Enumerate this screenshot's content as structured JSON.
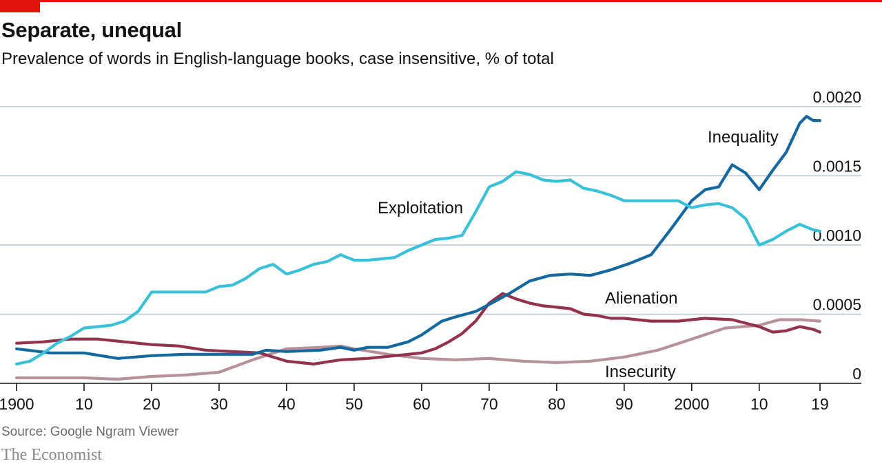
{
  "header": {
    "title": "Separate, unequal",
    "subtitle": "Prevalence of words in English-language books, case insensitive, % of total"
  },
  "footer": {
    "source": "Source: Google Ngram Viewer",
    "brand": "The Economist"
  },
  "chart_data": {
    "type": "line",
    "xlim": [
      1900,
      2019
    ],
    "ylim": [
      0,
      0.002
    ],
    "yticks": [
      0,
      0.0005,
      0.001,
      0.0015,
      0.002
    ],
    "ytick_labels": [
      "0",
      "0.0005",
      "0.0010",
      "0.0015",
      "0.0020"
    ],
    "xticks": [
      1900,
      1910,
      1920,
      1930,
      1940,
      1950,
      1960,
      1970,
      1980,
      1990,
      2000,
      2010,
      2019
    ],
    "xtick_labels": [
      "1900",
      "10",
      "20",
      "30",
      "40",
      "50",
      "60",
      "70",
      "80",
      "90",
      "2000",
      "10",
      "19"
    ],
    "grid": "horizontal",
    "series": [
      {
        "name": "Exploitation",
        "color": "#38c1d8",
        "x": [
          1900,
          1902,
          1904,
          1906,
          1908,
          1910,
          1912,
          1914,
          1916,
          1918,
          1920,
          1922,
          1924,
          1926,
          1928,
          1930,
          1932,
          1934,
          1936,
          1938,
          1940,
          1942,
          1944,
          1946,
          1948,
          1950,
          1952,
          1954,
          1956,
          1958,
          1960,
          1962,
          1964,
          1966,
          1968,
          1970,
          1972,
          1974,
          1976,
          1978,
          1980,
          1982,
          1984,
          1986,
          1988,
          1990,
          1992,
          1994,
          1996,
          1998,
          2000,
          2002,
          2004,
          2006,
          2008,
          2010,
          2012,
          2014,
          2016,
          2018,
          2019
        ],
        "values": [
          0.00014,
          0.00016,
          0.00022,
          0.00029,
          0.00034,
          0.0004,
          0.00041,
          0.00042,
          0.00045,
          0.00052,
          0.00066,
          0.00066,
          0.00066,
          0.00066,
          0.00066,
          0.0007,
          0.00071,
          0.00076,
          0.00083,
          0.00086,
          0.00079,
          0.00082,
          0.00086,
          0.00088,
          0.00093,
          0.00089,
          0.00089,
          0.0009,
          0.00091,
          0.00096,
          0.001,
          0.00104,
          0.00105,
          0.00107,
          0.00124,
          0.00142,
          0.00146,
          0.00153,
          0.00151,
          0.00147,
          0.00146,
          0.00147,
          0.00141,
          0.00139,
          0.00136,
          0.00132,
          0.00132,
          0.00132,
          0.00132,
          0.00132,
          0.00127,
          0.00129,
          0.0013,
          0.00127,
          0.00119,
          0.001,
          0.00104,
          0.0011,
          0.00115,
          0.00111,
          0.0011
        ]
      },
      {
        "name": "Inequality",
        "color": "#1468a0",
        "x": [
          1900,
          1905,
          1910,
          1915,
          1920,
          1925,
          1930,
          1935,
          1937,
          1940,
          1945,
          1948,
          1950,
          1952,
          1955,
          1958,
          1960,
          1963,
          1965,
          1968,
          1970,
          1973,
          1976,
          1979,
          1982,
          1985,
          1988,
          1991,
          1994,
          1997,
          2000,
          2002,
          2004,
          2006,
          2008,
          2010,
          2012,
          2014,
          2016,
          2017,
          2018,
          2019
        ],
        "values": [
          0.00025,
          0.00022,
          0.00022,
          0.00018,
          0.0002,
          0.00021,
          0.00021,
          0.00021,
          0.00024,
          0.00023,
          0.00024,
          0.00026,
          0.00024,
          0.00026,
          0.00026,
          0.0003,
          0.00035,
          0.00045,
          0.00048,
          0.00052,
          0.00057,
          0.00065,
          0.00074,
          0.00078,
          0.00079,
          0.00078,
          0.00082,
          0.00087,
          0.00093,
          0.00112,
          0.00132,
          0.0014,
          0.00142,
          0.00158,
          0.00152,
          0.0014,
          0.00154,
          0.00167,
          0.00188,
          0.00193,
          0.0019,
          0.0019
        ]
      },
      {
        "name": "Alienation",
        "color": "#93324a",
        "x": [
          1900,
          1904,
          1908,
          1912,
          1916,
          1920,
          1924,
          1928,
          1932,
          1936,
          1940,
          1944,
          1948,
          1952,
          1956,
          1958,
          1960,
          1962,
          1964,
          1966,
          1968,
          1970,
          1972,
          1974,
          1976,
          1978,
          1980,
          1982,
          1984,
          1986,
          1988,
          1990,
          1994,
          1998,
          2002,
          2006,
          2010,
          2012,
          2014,
          2016,
          2018,
          2019
        ],
        "values": [
          0.00029,
          0.0003,
          0.00032,
          0.00032,
          0.0003,
          0.00028,
          0.00027,
          0.00024,
          0.00023,
          0.00022,
          0.00016,
          0.00014,
          0.00017,
          0.00018,
          0.0002,
          0.00021,
          0.00022,
          0.00025,
          0.0003,
          0.00036,
          0.00045,
          0.00058,
          0.00065,
          0.00061,
          0.00058,
          0.00056,
          0.00055,
          0.00054,
          0.0005,
          0.00049,
          0.00047,
          0.00047,
          0.00045,
          0.00045,
          0.00047,
          0.00046,
          0.00041,
          0.00037,
          0.00038,
          0.00041,
          0.00039,
          0.00037
        ]
      },
      {
        "name": "Insecurity",
        "color": "#b8929a",
        "x": [
          1900,
          1905,
          1910,
          1915,
          1920,
          1925,
          1930,
          1935,
          1940,
          1945,
          1948,
          1950,
          1955,
          1960,
          1965,
          1970,
          1975,
          1980,
          1985,
          1990,
          1995,
          2000,
          2005,
          2010,
          2013,
          2016,
          2019
        ],
        "values": [
          4e-05,
          4e-05,
          4e-05,
          3e-05,
          5e-05,
          6e-05,
          8e-05,
          0.00017,
          0.00025,
          0.00026,
          0.00027,
          0.00025,
          0.00021,
          0.00018,
          0.00017,
          0.00018,
          0.00016,
          0.00015,
          0.00016,
          0.00019,
          0.00024,
          0.00032,
          0.0004,
          0.00042,
          0.00046,
          0.00046,
          0.00045
        ]
      }
    ]
  }
}
